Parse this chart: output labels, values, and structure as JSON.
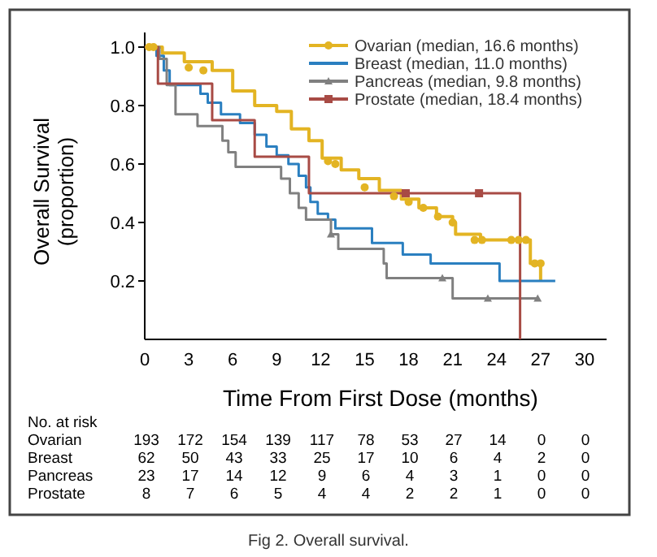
{
  "chart_data": [
    {
      "type": "step",
      "xlabel": "Time From First Dose (months)",
      "ylabel": "Overall Survival\n(proportion)",
      "xlim": [
        0,
        31.5
      ],
      "xticks": [
        0,
        3,
        6,
        9,
        12,
        15,
        18,
        21,
        24,
        27,
        30
      ],
      "ylim": [
        0,
        1.05
      ],
      "yticks": [
        0.2,
        0.4,
        0.6,
        0.8,
        {
          "value": 1,
          "label": "1.0"
        }
      ],
      "legend": "top right",
      "annotations": [
        "Fig 2.  Overall survival."
      ],
      "series": [
        {
          "name": "Ovarian (median, 16.6 months)",
          "color": "#e3b423",
          "x": [
            0,
            1.2,
            2.7,
            4.6,
            6,
            7.5,
            9,
            10,
            11.2,
            12.1,
            13.4,
            14.6,
            16,
            17.5,
            18.7,
            19.9,
            21,
            21.2,
            22.9,
            26.3,
            27,
            27
          ],
          "values": [
            1,
            0.98,
            0.95,
            0.92,
            0.85,
            0.8,
            0.78,
            0.72,
            0.68,
            0.62,
            0.58,
            0.55,
            0.51,
            0.48,
            0.45,
            0.42,
            0.4,
            0.36,
            0.34,
            0.26,
            0.2,
            0.2
          ]
        },
        {
          "name": "Breast (median, 11.0 months)",
          "color": "#2a7fc0",
          "x": [
            0,
            0.8,
            1.3,
            1.7,
            3.8,
            4.3,
            5.2,
            6.5,
            7.5,
            8.3,
            9,
            9.8,
            10.5,
            11,
            11.3,
            11.8,
            12.5,
            13,
            15.5,
            17.6,
            19.5,
            24.2,
            28
          ],
          "values": [
            1,
            0.97,
            0.92,
            0.87,
            0.84,
            0.81,
            0.77,
            0.74,
            0.7,
            0.66,
            0.63,
            0.6,
            0.56,
            0.52,
            0.47,
            0.43,
            0.41,
            0.38,
            0.33,
            0.29,
            0.26,
            0.2,
            0.2
          ]
        },
        {
          "name": "Pancreas (median, 9.8 months)",
          "color": "#808080",
          "x": [
            0,
            1,
            1.5,
            2.1,
            3.6,
            5.3,
            5.7,
            6.2,
            9.3,
            9.9,
            10.5,
            11,
            12.7,
            13.2,
            16.3,
            16.5,
            21,
            26.8
          ],
          "values": [
            1,
            0.96,
            0.87,
            0.77,
            0.73,
            0.68,
            0.64,
            0.59,
            0.55,
            0.5,
            0.45,
            0.41,
            0.36,
            0.31,
            0.26,
            0.21,
            0.14,
            0.14
          ]
        },
        {
          "name": "Prostate (median, 18.4 months)",
          "color": "#a84b45",
          "x": [
            0,
            0.9,
            4.6,
            7.5,
            11.2,
            25.6
          ],
          "values": [
            1,
            0.875,
            0.75,
            0.625,
            0.5,
            0
          ]
        },
        {
          "type": "scatter",
          "color": "#e3b423",
          "marker": "circle",
          "x": [
            0.3,
            0.6,
            3,
            4,
            12.5,
            13,
            15,
            17,
            18,
            19,
            20,
            21,
            22.5,
            23,
            25,
            25.5,
            26,
            26.6,
            27
          ],
          "values": [
            1,
            1,
            0.93,
            0.92,
            0.61,
            0.6,
            0.52,
            0.49,
            0.47,
            0.45,
            0.42,
            0.4,
            0.34,
            0.34,
            0.34,
            0.34,
            0.34,
            0.26,
            0.26
          ]
        },
        {
          "type": "scatter",
          "color": "#808080",
          "marker": "triangle",
          "x": [
            12.7,
            20.3,
            23.4,
            26.8
          ],
          "values": [
            0.36,
            0.21,
            0.14,
            0.14
          ]
        },
        {
          "type": "scatter",
          "color": "#a84b45",
          "marker": "square",
          "x": [
            17.8,
            22.8
          ],
          "values": [
            0.5,
            0.5
          ]
        }
      ]
    },
    {
      "type": "other",
      "title": "No. at risk",
      "y_categories": [
        "Ovarian",
        "Breast",
        "Pancreas",
        "Prostate"
      ],
      "cell_labels": [
        [
          "193",
          "172",
          "154",
          "139",
          "117",
          "78",
          "53",
          "27",
          "14",
          "0",
          "0"
        ],
        [
          "62",
          "50",
          "43",
          "33",
          "25",
          "17",
          "10",
          "6",
          "4",
          "2",
          "0"
        ],
        [
          "23",
          "17",
          "14",
          "12",
          "9",
          "6",
          "4",
          "3",
          "1",
          "0",
          "0"
        ],
        [
          "8",
          "7",
          "6",
          "5",
          "4",
          "4",
          "2",
          "2",
          "1",
          "0",
          "0"
        ]
      ]
    }
  ]
}
